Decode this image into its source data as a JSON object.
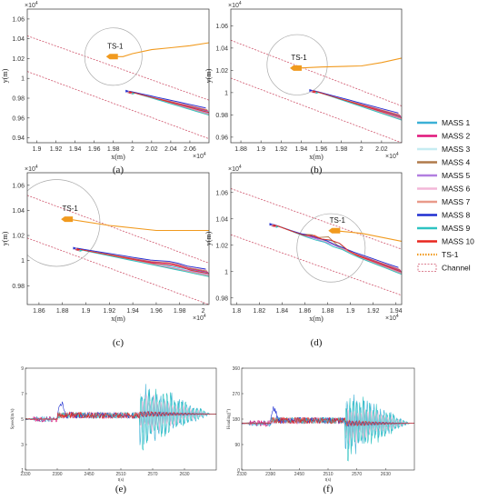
{
  "chart_data": [
    {
      "id": "a",
      "type": "line",
      "caption": "(a)",
      "xlabel": "x(m)",
      "ylabel": "y(m)",
      "x_exponent": "×10^4",
      "y_exponent": "×10^4",
      "xlim": [
        1.89,
        2.08
      ],
      "ylim": [
        0.935,
        1.07
      ],
      "xticks": [
        1.9,
        1.92,
        1.94,
        1.96,
        1.98,
        2,
        2.02,
        2.04,
        2.06
      ],
      "yticks": [
        0.94,
        0.96,
        0.98,
        1,
        1.02,
        1.04,
        1.06
      ],
      "ts_label": "TS-1",
      "channel": [
        [
          [
            1.89,
            1.043
          ],
          [
            2.08,
            0.978
          ]
        ],
        [
          [
            1.89,
            1.007
          ],
          [
            2.08,
            0.939
          ]
        ]
      ],
      "circle": {
        "center": [
          1.98,
          1.022
        ],
        "r": 0.03
      },
      "ts_track": [
        [
          1.98,
          1.022
        ],
        [
          1.99,
          1.022
        ],
        [
          2.0,
          1.025
        ],
        [
          2.02,
          1.029
        ],
        [
          2.04,
          1.031
        ],
        [
          2.06,
          1.033
        ],
        [
          2.08,
          1.036
        ]
      ],
      "ts_ship": [
        1.98,
        1.022
      ],
      "mass_tracks": [
        {
          "x0": 2.0,
          "y0": 0.986,
          "x1": 2.08,
          "y1": 0.966
        },
        {
          "x0": 2.004,
          "y0": 0.984,
          "x1": 2.08,
          "y1": 0.964
        }
      ]
    },
    {
      "id": "b",
      "type": "line",
      "caption": "(b)",
      "xlabel": "x(m)",
      "ylabel": "y(m)",
      "x_exponent": "×10^4",
      "y_exponent": "×10^4",
      "xlim": [
        1.87,
        2.04
      ],
      "ylim": [
        0.955,
        1.075
      ],
      "xticks": [
        1.88,
        1.9,
        1.92,
        1.94,
        1.96,
        1.98,
        2,
        2.02
      ],
      "yticks": [
        0.96,
        0.98,
        1,
        1.02,
        1.04,
        1.06
      ],
      "ts_label": "TS-1",
      "channel": [
        [
          [
            1.87,
            1.047
          ],
          [
            2.04,
            0.988
          ]
        ],
        [
          [
            1.87,
            1.013
          ],
          [
            2.04,
            0.955
          ]
        ]
      ],
      "circle": {
        "center": [
          1.936,
          1.025
        ],
        "r": 0.03
      },
      "ts_track": [
        [
          1.936,
          1.022
        ],
        [
          1.96,
          1.023
        ],
        [
          2.0,
          1.024
        ],
        [
          2.02,
          1.027
        ],
        [
          2.04,
          1.031
        ]
      ],
      "ts_ship": [
        1.936,
        1.022
      ],
      "mass_tracks": [
        {
          "x0": 1.955,
          "y0": 1.001,
          "x1": 2.04,
          "y1": 0.978
        },
        {
          "x0": 1.96,
          "y0": 0.998,
          "x1": 2.04,
          "y1": 0.975
        }
      ]
    },
    {
      "id": "c",
      "type": "line",
      "caption": "(c)",
      "xlabel": "x(m)",
      "ylabel": "y(m)",
      "x_exponent": "×10^4",
      "y_exponent": "×10^4",
      "xlim": [
        1.85,
        2.005
      ],
      "ylim": [
        0.965,
        1.07
      ],
      "xticks": [
        1.86,
        1.88,
        1.9,
        1.92,
        1.94,
        1.96,
        1.98,
        2
      ],
      "yticks": [
        0.98,
        1,
        1.02,
        1.04,
        1.06
      ],
      "ts_label": "TS-1",
      "channel": [
        [
          [
            1.85,
            1.052
          ],
          [
            2.005,
            0.998
          ]
        ],
        [
          [
            1.85,
            1.018
          ],
          [
            2.005,
            0.965
          ]
        ]
      ],
      "circle": {
        "center": [
          1.875,
          1.03
        ],
        "r": 0.037
      },
      "ts_track": [
        [
          1.885,
          1.033
        ],
        [
          1.92,
          1.028
        ],
        [
          1.96,
          1.024
        ],
        [
          2.005,
          1.024
        ]
      ],
      "ts_ship": [
        1.885,
        1.033
      ],
      "mass_tracks": [
        {
          "x0": 1.895,
          "y0": 1.009,
          "x1": 2.005,
          "y1": 0.99
        },
        {
          "x0": 1.9,
          "y0": 1.005,
          "x1": 2.005,
          "y1": 0.986
        }
      ]
    },
    {
      "id": "d",
      "type": "line",
      "caption": "(d)",
      "xlabel": "x(m)",
      "ylabel": "y(m)",
      "x_exponent": "×10^4",
      "y_exponent": "×10^4",
      "xlim": [
        1.795,
        1.945
      ],
      "ylim": [
        0.975,
        1.075
      ],
      "xticks": [
        1.8,
        1.82,
        1.84,
        1.86,
        1.88,
        1.9,
        1.92,
        1.94
      ],
      "yticks": [
        0.98,
        1,
        1.02,
        1.04,
        1.06
      ],
      "ts_label": "TS-1",
      "channel": [
        [
          [
            1.795,
            1.063
          ],
          [
            1.945,
            1.017
          ]
        ],
        [
          [
            1.795,
            1.028
          ],
          [
            1.945,
            0.982
          ]
        ]
      ],
      "circle": {
        "center": [
          1.883,
          1.018
        ],
        "r": 0.03
      },
      "ts_track": [
        [
          1.887,
          1.031
        ],
        [
          1.91,
          1.029
        ],
        [
          1.945,
          1.023
        ]
      ],
      "ts_ship": [
        1.887,
        1.031
      ],
      "mass_tracks": [
        {
          "x0": 1.835,
          "y0": 1.035,
          "x1": 1.945,
          "y1": 1.0
        },
        {
          "x0": 1.84,
          "y0": 1.031,
          "x1": 1.945,
          "y1": 0.998
        }
      ]
    },
    {
      "id": "e",
      "type": "line",
      "caption": "(e)",
      "xlabel": "t(s)",
      "ylabel": "Speed(m/s)",
      "xlim": [
        2330,
        2690
      ],
      "ylim": [
        1,
        9
      ],
      "xticks": [
        2330,
        2390,
        2450,
        2510,
        2570,
        2630
      ],
      "yticks": [
        1,
        3,
        5,
        7,
        9
      ],
      "base": 5.0,
      "phase1": [
        2390,
        2545,
        5.3
      ],
      "phase2": [
        2550,
        2690,
        5.4
      ]
    },
    {
      "id": "f",
      "type": "line",
      "caption": "(f)",
      "xlabel": "t(s)",
      "ylabel": "Heading(°)",
      "xlim": [
        2330,
        2690
      ],
      "ylim": [
        0,
        360
      ],
      "xticks": [
        2330,
        2390,
        2450,
        2510,
        2570,
        2630
      ],
      "yticks": [
        0,
        90,
        180,
        270,
        360
      ],
      "base": 165,
      "phase1": [
        2390,
        2545,
        175
      ],
      "phase2": [
        2550,
        2690,
        165
      ]
    }
  ],
  "legend": [
    {
      "name": "MASS 1",
      "color": "#3bb0d6",
      "style": "solid"
    },
    {
      "name": "MASS 2",
      "color": "#e0157a",
      "style": "solid"
    },
    {
      "name": "MASS 3",
      "color": "#c6ecf2",
      "style": "solid"
    },
    {
      "name": "MASS 4",
      "color": "#b07a4a",
      "style": "solid"
    },
    {
      "name": "MASS 5",
      "color": "#b27fe0",
      "style": "solid"
    },
    {
      "name": "MASS 6",
      "color": "#f3b7d8",
      "style": "solid"
    },
    {
      "name": "MASS 7",
      "color": "#e99a8a",
      "style": "solid"
    },
    {
      "name": "MASS 8",
      "color": "#1f2fd1",
      "style": "solid"
    },
    {
      "name": "MASS 9",
      "color": "#2ec3c1",
      "style": "solid"
    },
    {
      "name": "MASS 10",
      "color": "#e8261e",
      "style": "solid"
    },
    {
      "name": "TS-1",
      "color": "#f19a1e",
      "style": "dotted"
    },
    {
      "name": "Channel",
      "color": "#d0566d",
      "style": "box"
    }
  ],
  "colors": {
    "ts": "#f19a1e",
    "channel": "#d0566d",
    "circle": "#aaaaaa",
    "axis": "#333333"
  }
}
